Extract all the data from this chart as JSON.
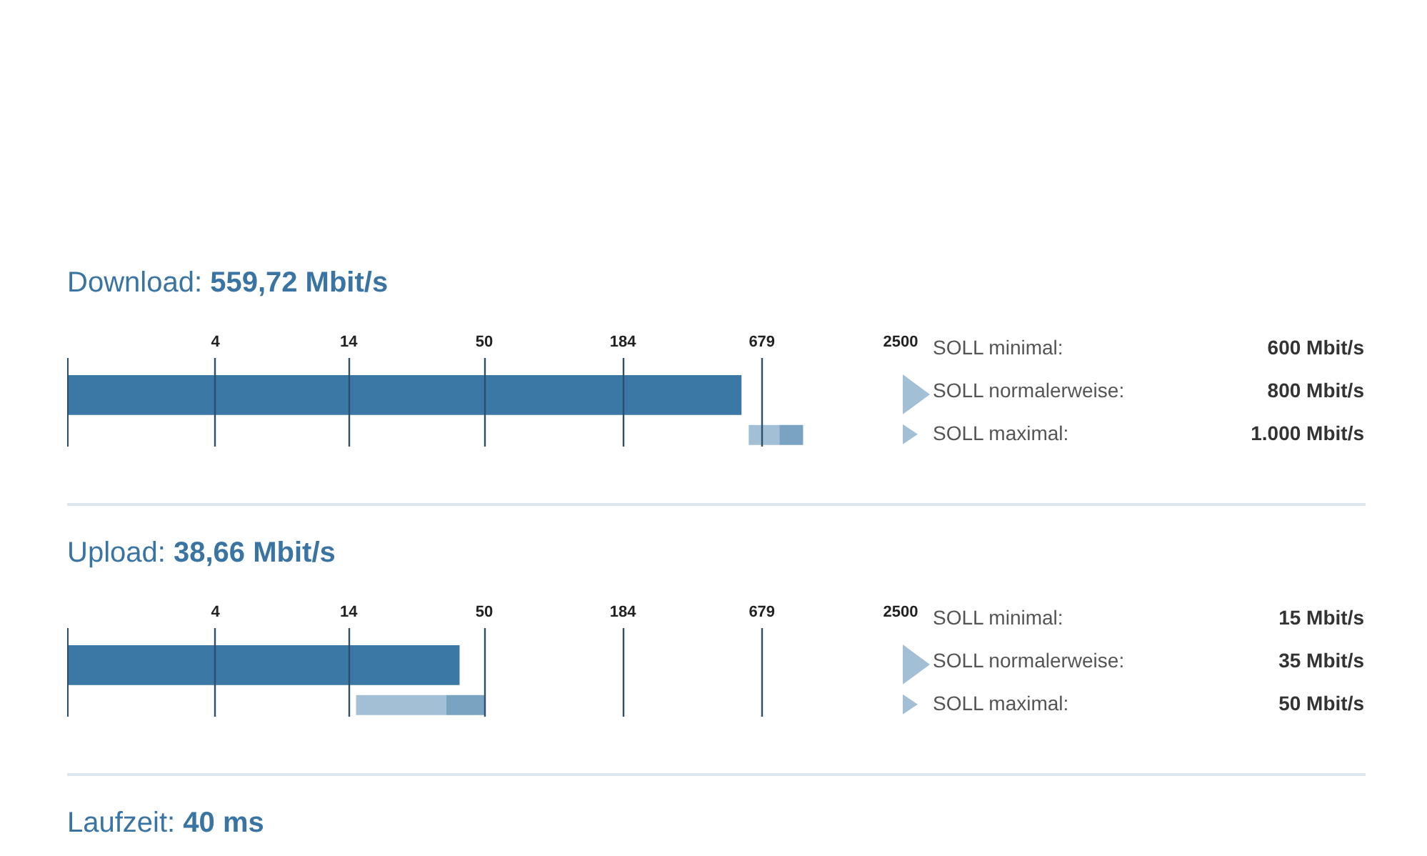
{
  "chart_data": [
    {
      "type": "bar",
      "orientation": "horizontal",
      "title": "Download:",
      "subtitle": "559,72 Mbit/s",
      "categories": [
        null,
        null
      ],
      "series": [
        {
          "color": "#3c78a5",
          "values": [
            559.72,
            null
          ]
        },
        {
          "color": "#a3bfd5",
          "values": [
            null,
            200
          ],
          "base": [
            null,
            600
          ]
        },
        {
          "color": "#7aa3c2",
          "values": [
            null,
            200
          ],
          "base": [
            null,
            800
          ]
        }
      ],
      "log": "x",
      "xlim": [
        1,
        2500
      ],
      "xticks": [
        4,
        14,
        50,
        184,
        679,
        2500
      ],
      "grid": "x",
      "tick_labels": "x",
      "annotations": [
        "SOLL minimal:",
        "600 Mbit/s",
        "SOLL normalerweise:",
        "800 Mbit/s",
        "SOLL maximal:",
        "1.000 Mbit/s"
      ]
    },
    {
      "type": "bar",
      "orientation": "horizontal",
      "title": "Upload:",
      "subtitle": "38,66 Mbit/s",
      "categories": [
        null,
        null
      ],
      "series": [
        {
          "color": "#3c78a5",
          "values": [
            38.66,
            null
          ]
        },
        {
          "color": "#a3bfd5",
          "values": [
            null,
            20
          ],
          "base": [
            null,
            15
          ]
        },
        {
          "color": "#7aa3c2",
          "values": [
            null,
            15
          ],
          "base": [
            null,
            35
          ]
        }
      ],
      "log": "x",
      "xlim": [
        1,
        2500
      ],
      "xticks": [
        4,
        14,
        50,
        184,
        679,
        2500
      ],
      "grid": "x",
      "tick_labels": "x",
      "annotations": [
        "SOLL minimal:",
        "15 Mbit/s",
        "SOLL normalerweise:",
        "35 Mbit/s",
        "SOLL maximal:",
        "50 Mbit/s"
      ]
    },
    {
      "type": "other",
      "title": "Laufzeit:",
      "subtitle": "40 ms"
    }
  ]
}
